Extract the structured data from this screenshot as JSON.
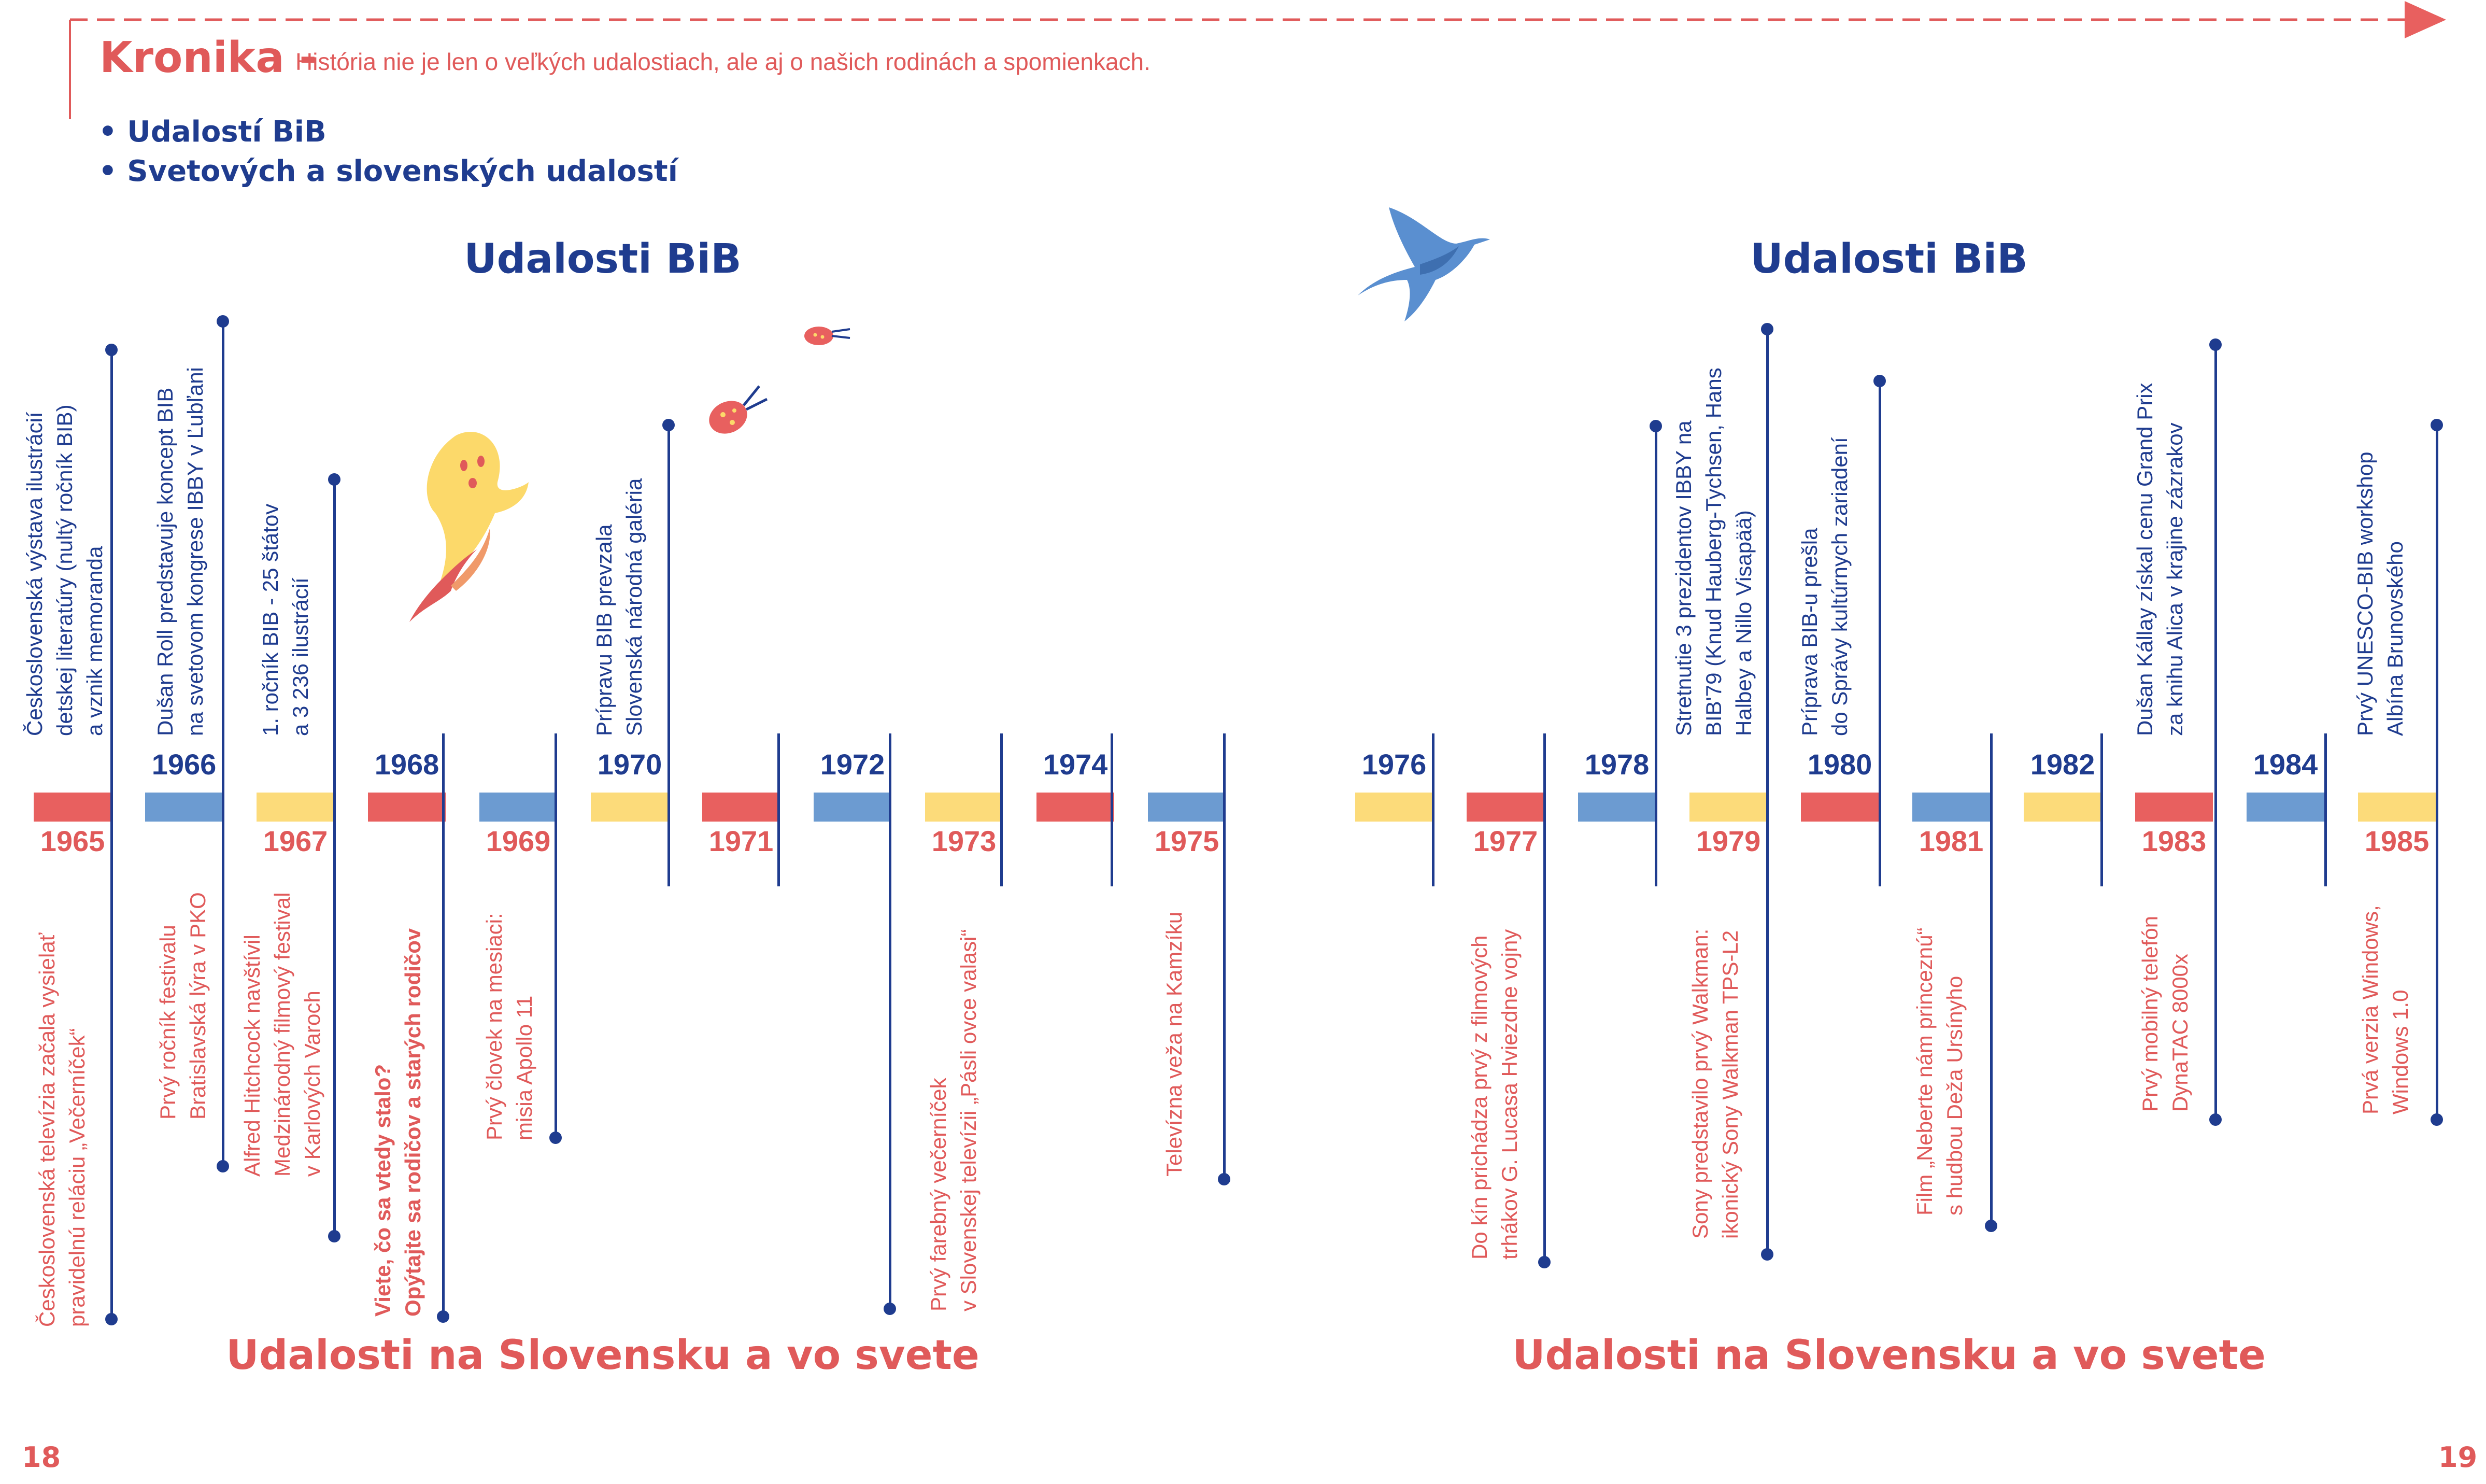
{
  "header": {
    "title": "Kronika -",
    "subtitle": "História nie je len o veľkých udalostiach, ale aj o našich rodinách a spomienkach.",
    "categories": [
      "• Udalostí BiB",
      "• Svetových a slovenských udalostí"
    ]
  },
  "sections": {
    "top_left": "Udalosti BiB",
    "top_right": "Udalosti BiB",
    "bottom_left": "Udalosti na Slovensku a vo svete",
    "bottom_right": "Udalosti na Slovensku a vo svete"
  },
  "colors": {
    "red": "#e8605f",
    "blue": "#6c9bd1",
    "yellow": "#fcdb7a",
    "navy": "#1f3c8f",
    "coral_text": "#e05a5a"
  },
  "timeline": {
    "years": [
      {
        "year": "1965",
        "pos": "bottom",
        "color": "red"
      },
      {
        "year": "1966",
        "pos": "top",
        "color": "blue"
      },
      {
        "year": "1967",
        "pos": "bottom",
        "color": "yellow"
      },
      {
        "year": "1968",
        "pos": "top",
        "color": "red"
      },
      {
        "year": "1969",
        "pos": "bottom",
        "color": "blue"
      },
      {
        "year": "1970",
        "pos": "top",
        "color": "yellow"
      },
      {
        "year": "1971",
        "pos": "bottom",
        "color": "red"
      },
      {
        "year": "1972",
        "pos": "top",
        "color": "blue"
      },
      {
        "year": "1973",
        "pos": "bottom",
        "color": "yellow"
      },
      {
        "year": "1974",
        "pos": "top",
        "color": "red"
      },
      {
        "year": "1975",
        "pos": "bottom",
        "color": "blue"
      },
      {
        "year": "1976",
        "pos": "top",
        "color": "yellow"
      },
      {
        "year": "1977",
        "pos": "bottom",
        "color": "red"
      },
      {
        "year": "1978",
        "pos": "top",
        "color": "blue"
      },
      {
        "year": "1979",
        "pos": "bottom",
        "color": "yellow"
      },
      {
        "year": "1980",
        "pos": "top",
        "color": "red"
      },
      {
        "year": "1981",
        "pos": "bottom",
        "color": "blue"
      },
      {
        "year": "1982",
        "pos": "top",
        "color": "yellow"
      },
      {
        "year": "1983",
        "pos": "bottom",
        "color": "red"
      },
      {
        "year": "1984",
        "pos": "top",
        "color": "blue"
      },
      {
        "year": "1985",
        "pos": "bottom",
        "color": "yellow"
      }
    ]
  },
  "bib_events": [
    {
      "text": "Československá výstava ilustrácií\ndetskej literatúry (nultý ročník BIB)\na vznik memoranda"
    },
    {
      "text": "Dušan Roll predstavuje koncept BIB\nna svetovom kongrese IBBY v Ľubľani"
    },
    {
      "text": "1. ročník BIB - 25 štátov\na 3 236 ilustrácií"
    },
    {
      "text": "Prípravu BIB prevzala\nSlovenská národná galéria"
    },
    {
      "text": "Stretnutie 3 prezidentov IBBY na\nBIB'79 (Knud Hauberg-Tychsen, Hans\nHalbey a Nillo Visapää)"
    },
    {
      "text": "Príprava BIB-u prešla\ndo Správy kultúrnych zariadení"
    },
    {
      "text": "Dušan Kállay získal cenu Grand Prix\nza knihu Alica v krajine zázrakov"
    },
    {
      "text": "Prvý UNESCO-BIB workshop\nAlbína Brunovského"
    }
  ],
  "world_events": [
    {
      "text": "Československá televízia začala vysielať\npravidelnú reláciu „Večerníček“"
    },
    {
      "text": "Prvý ročník festivalu\nBratislavská lýra v PKO"
    },
    {
      "text": "Alfred Hitchcock navštívil\nMedzinárodný filmový festival\nv Karlových Varoch"
    },
    {
      "text": "Viete, čo sa vtedy stalo?\nOpýtajte sa rodičov a starých rodičov"
    },
    {
      "text": "Prvý človek na mesiaci:\nmisia Apollo 11"
    },
    {
      "text": "Prvý farebný večerníček\nv Slovenskej televízii „Pásli ovce valasi“"
    },
    {
      "text": "Televízna veža na Kamzíku"
    },
    {
      "text": "Do kín prichádza prvý z filmových\ntrhákov G. Lucasa Hviezdne vojny"
    },
    {
      "text": "Sony predstavilo prvý Walkman:\nikonický Sony Walkman TPS-L2"
    },
    {
      "text": "Film „Neberte nám princeznú“\ns hudbou Deža Ursínyho"
    },
    {
      "text": "Prvý mobilný telefón\nDynaTAC 8000x"
    },
    {
      "text": "Prvá verzia Windows,\nWindows 1.0"
    }
  ],
  "page_numbers": {
    "left": "18",
    "right": "19"
  }
}
